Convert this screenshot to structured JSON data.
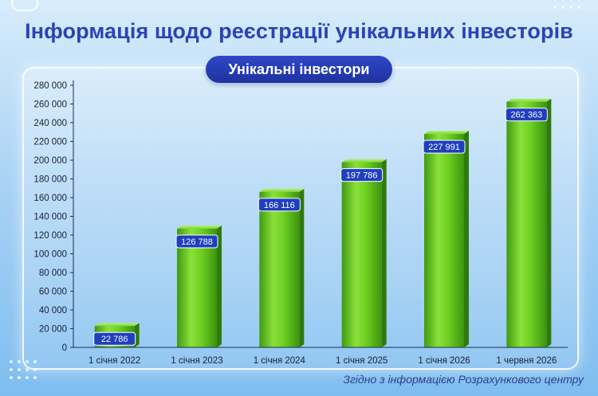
{
  "header": {
    "title": "Інформація щодо реєстрації унікальних інвесторів",
    "pill_label": "Унікальні інвестори"
  },
  "footer": {
    "source": "Згідно з інформацією Розрахункового центру"
  },
  "colors": {
    "title": "#2c43b5",
    "bar": "#5cc21c",
    "label_bg": "#1f3fbf"
  },
  "chart_data": {
    "type": "bar",
    "categories": [
      "1 січня 2022",
      "1 січня 2023",
      "1 січня 2024",
      "1 січня 2025",
      "1 січня 2026",
      "1 червня 2026"
    ],
    "values": [
      22786,
      126788,
      166116,
      197786,
      227991,
      262363
    ],
    "value_labels": [
      "22 786",
      "126 788",
      "166 116",
      "197 786",
      "227 991",
      "262 363"
    ],
    "y_ticks": [
      0,
      20000,
      40000,
      60000,
      80000,
      100000,
      120000,
      140000,
      160000,
      180000,
      200000,
      220000,
      240000,
      260000,
      280000
    ],
    "y_tick_labels": [
      "0",
      "20 000",
      "40 000",
      "60 000",
      "80 000",
      "100 000",
      "120 000",
      "140 000",
      "160 000",
      "180 000",
      "200 000",
      "220 000",
      "240 000",
      "260 000",
      "280 000"
    ],
    "ylim": [
      0,
      280000
    ],
    "title": "Унікальні інвестори",
    "xlabel": "",
    "ylabel": "",
    "grid": false,
    "legend": "none"
  }
}
